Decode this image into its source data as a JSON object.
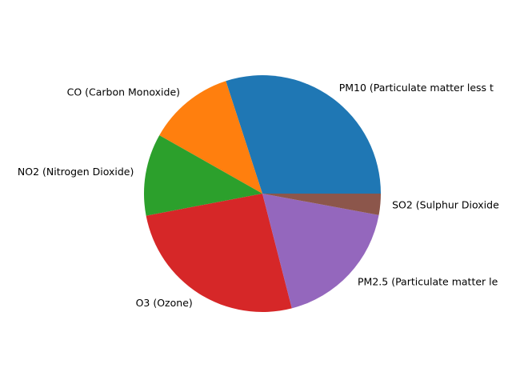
{
  "chart_data": {
    "type": "pie",
    "start_angle_deg": 0,
    "direction": "counterclockwise",
    "slices": [
      {
        "label": "PM10 (Particulate matter less t",
        "value": 30.0,
        "color": "#1f77b4"
      },
      {
        "label": "CO (Carbon Monoxide)",
        "value": 11.8,
        "color": "#ff7f0e"
      },
      {
        "label": "NO2 (Nitrogen Dioxide)",
        "value": 11.2,
        "color": "#2ca02c"
      },
      {
        "label": "O3 (Ozone)",
        "value": 26.0,
        "color": "#d62728"
      },
      {
        "label": "PM2.5 (Particulate matter le",
        "value": 18.1,
        "color": "#9467bd"
      },
      {
        "label": "SO2 (Sulphur Dioxide",
        "value": 2.9,
        "color": "#8c564b"
      }
    ]
  }
}
